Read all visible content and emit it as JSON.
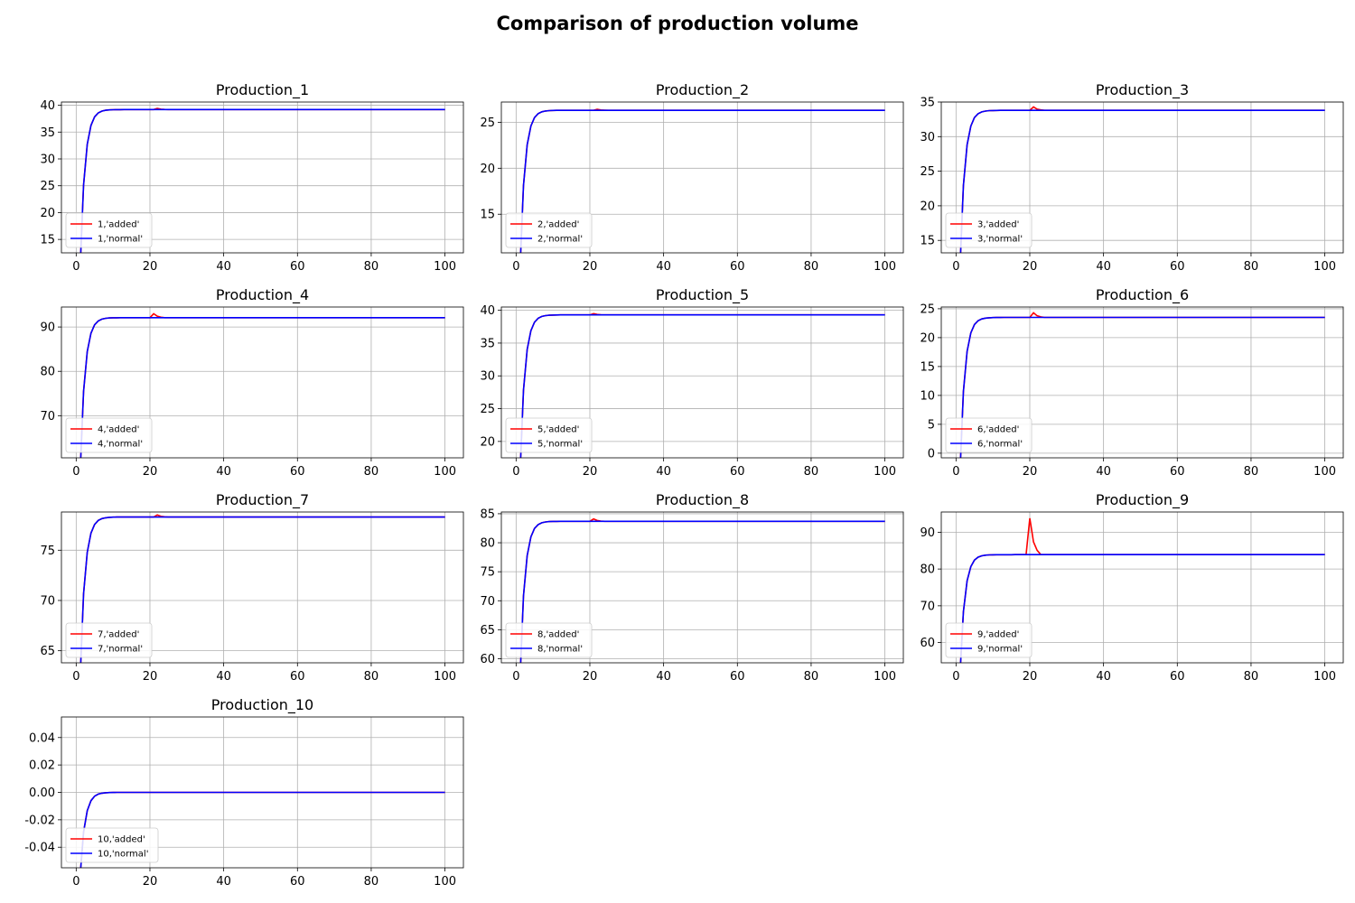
{
  "figure": {
    "title": "Comparison of production volume"
  },
  "colors": {
    "added": "#ff0000",
    "normal": "#0000ff",
    "grid": "#b0b0b0"
  },
  "chart_data": [
    {
      "type": "line",
      "title": "Production_1",
      "xlim": [
        -4,
        105
      ],
      "ylim": [
        12.5,
        40.6
      ],
      "xticks": [
        0,
        20,
        40,
        60,
        80,
        100
      ],
      "yticks": [
        15,
        20,
        25,
        30,
        35,
        40
      ],
      "plateau": 39.2,
      "spike_x": 22,
      "spike_value": 39.4,
      "grid": true,
      "legend": "lower-left",
      "series": [
        {
          "name": "1,'added'",
          "color": "#ff0000"
        },
        {
          "name": "1,'normal'",
          "color": "#0000ff"
        }
      ]
    },
    {
      "type": "line",
      "title": "Production_2",
      "xlim": [
        -4,
        105
      ],
      "ylim": [
        10.8,
        27.2
      ],
      "xticks": [
        0,
        20,
        40,
        60,
        80,
        100
      ],
      "yticks": [
        15,
        20,
        25
      ],
      "plateau": 26.3,
      "spike_x": 22,
      "spike_value": 26.4,
      "grid": true,
      "legend": "lower-left",
      "series": [
        {
          "name": "2,'added'",
          "color": "#ff0000"
        },
        {
          "name": "2,'normal'",
          "color": "#0000ff"
        }
      ]
    },
    {
      "type": "line",
      "title": "Production_3",
      "xlim": [
        -4,
        105
      ],
      "ylim": [
        13.2,
        35.0
      ],
      "xticks": [
        0,
        20,
        40,
        60,
        80,
        100
      ],
      "yticks": [
        15,
        20,
        25,
        30,
        35
      ],
      "plateau": 33.8,
      "spike_x": 21,
      "spike_value": 34.3,
      "grid": true,
      "legend": "lower-left",
      "series": [
        {
          "name": "3,'added'",
          "color": "#ff0000"
        },
        {
          "name": "3,'normal'",
          "color": "#0000ff"
        }
      ]
    },
    {
      "type": "line",
      "title": "Production_4",
      "xlim": [
        -4,
        105
      ],
      "ylim": [
        60.5,
        94.5
      ],
      "xticks": [
        0,
        20,
        40,
        60,
        80,
        100
      ],
      "yticks": [
        70,
        80,
        90
      ],
      "plateau": 92.1,
      "spike_x": 21,
      "spike_value": 93.0,
      "grid": true,
      "legend": "lower-left",
      "series": [
        {
          "name": "4,'added'",
          "color": "#ff0000"
        },
        {
          "name": "4,'normal'",
          "color": "#0000ff"
        }
      ]
    },
    {
      "type": "line",
      "title": "Production_5",
      "xlim": [
        -4,
        105
      ],
      "ylim": [
        17.5,
        40.5
      ],
      "xticks": [
        0,
        20,
        40,
        60,
        80,
        100
      ],
      "yticks": [
        20,
        25,
        30,
        35,
        40
      ],
      "plateau": 39.3,
      "spike_x": 21,
      "spike_value": 39.5,
      "grid": true,
      "legend": "lower-left",
      "series": [
        {
          "name": "5,'added'",
          "color": "#ff0000"
        },
        {
          "name": "5,'normal'",
          "color": "#0000ff"
        }
      ]
    },
    {
      "type": "line",
      "title": "Production_6",
      "xlim": [
        -4,
        105
      ],
      "ylim": [
        -0.8,
        25.3
      ],
      "xticks": [
        0,
        20,
        40,
        60,
        80,
        100
      ],
      "yticks": [
        0,
        5,
        10,
        15,
        20,
        25
      ],
      "plateau": 23.5,
      "spike_x": 21,
      "spike_value": 24.3,
      "grid": true,
      "legend": "lower-left",
      "series": [
        {
          "name": "6,'added'",
          "color": "#ff0000"
        },
        {
          "name": "6,'normal'",
          "color": "#0000ff"
        }
      ]
    },
    {
      "type": "line",
      "title": "Production_7",
      "xlim": [
        -4,
        105
      ],
      "ylim": [
        63.8,
        78.8
      ],
      "xticks": [
        0,
        20,
        40,
        60,
        80,
        100
      ],
      "yticks": [
        65,
        70,
        75
      ],
      "plateau": 78.3,
      "spike_x": 22,
      "spike_value": 78.5,
      "grid": true,
      "legend": "lower-left",
      "series": [
        {
          "name": "7,'added'",
          "color": "#ff0000"
        },
        {
          "name": "7,'normal'",
          "color": "#0000ff"
        }
      ]
    },
    {
      "type": "line",
      "title": "Production_8",
      "xlim": [
        -4,
        105
      ],
      "ylim": [
        59.3,
        85.3
      ],
      "xticks": [
        0,
        20,
        40,
        60,
        80,
        100
      ],
      "yticks": [
        60,
        65,
        70,
        75,
        80,
        85
      ],
      "plateau": 83.7,
      "spike_x": 21,
      "spike_value": 84.1,
      "grid": true,
      "legend": "lower-left",
      "series": [
        {
          "name": "8,'added'",
          "color": "#ff0000"
        },
        {
          "name": "8,'normal'",
          "color": "#0000ff"
        }
      ]
    },
    {
      "type": "line",
      "title": "Production_9",
      "xlim": [
        -4,
        105
      ],
      "ylim": [
        54.5,
        95.5
      ],
      "xticks": [
        0,
        20,
        40,
        60,
        80,
        100
      ],
      "yticks": [
        60,
        70,
        80,
        90
      ],
      "plateau": 83.9,
      "spike_x": 20,
      "spike_value": 93.8,
      "grid": true,
      "legend": "lower-left",
      "series": [
        {
          "name": "9,'added'",
          "color": "#ff0000"
        },
        {
          "name": "9,'normal'",
          "color": "#0000ff"
        }
      ]
    },
    {
      "type": "line",
      "title": "Production_10",
      "xlim": [
        -4,
        105
      ],
      "ylim": [
        -0.055,
        0.055
      ],
      "xticks": [
        0,
        20,
        40,
        60,
        80,
        100
      ],
      "yticks": [
        -0.04,
        -0.02,
        0.0,
        0.02,
        0.04
      ],
      "plateau": 0.0,
      "spike_x": null,
      "spike_value": null,
      "grid": true,
      "legend": "lower-left",
      "series": [
        {
          "name": "10,'added'",
          "color": "#ff0000"
        },
        {
          "name": "10,'normal'",
          "color": "#0000ff"
        }
      ]
    }
  ]
}
